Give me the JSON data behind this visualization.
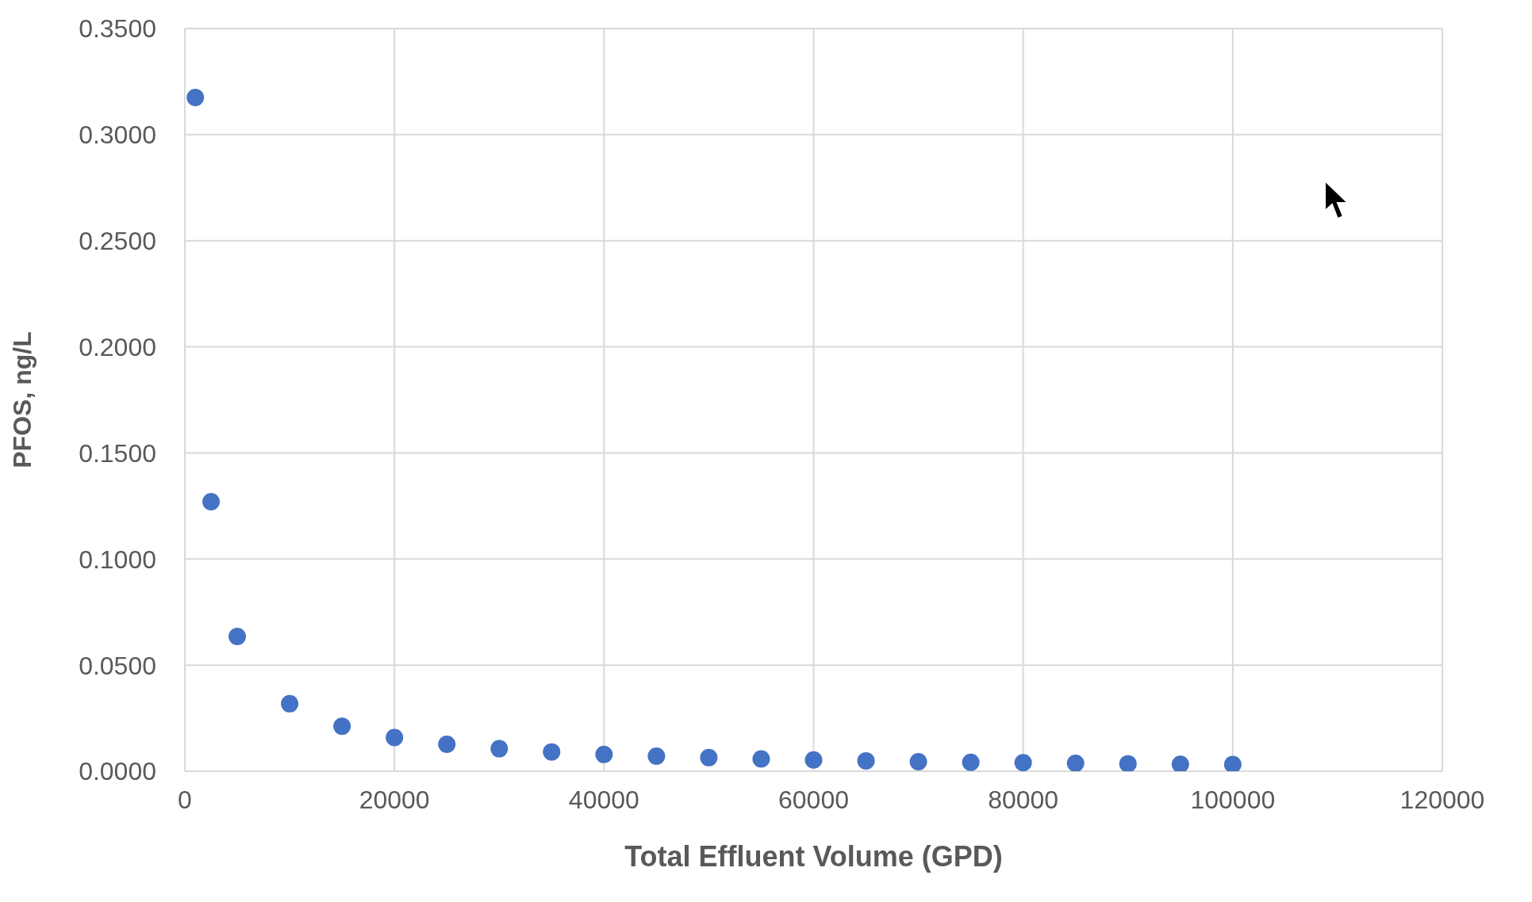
{
  "chart_data": {
    "type": "scatter",
    "xlabel": "Total Effluent Volume (GPD)",
    "ylabel": "PFOS, ng/L",
    "x": [
      1000,
      2500,
      5000,
      10000,
      15000,
      20000,
      25000,
      30000,
      35000,
      40000,
      45000,
      50000,
      55000,
      60000,
      65000,
      70000,
      75000,
      80000,
      85000,
      90000,
      95000,
      100000
    ],
    "series": [
      {
        "color": "#4472c4",
        "values": [
          0.3175,
          0.127,
          0.0635,
          0.0318,
          0.0212,
          0.0159,
          0.0127,
          0.0106,
          0.0091,
          0.0079,
          0.0071,
          0.0064,
          0.0058,
          0.0053,
          0.0049,
          0.0045,
          0.0042,
          0.004,
          0.0037,
          0.0035,
          0.0033,
          0.0032
        ]
      }
    ],
    "xlim": [
      0,
      120000
    ],
    "xticks": [
      0,
      20000,
      40000,
      60000,
      80000,
      100000,
      120000
    ],
    "ylim": [
      0,
      0.35
    ],
    "yticks": [
      {
        "value": 0,
        "label": "0.0000"
      },
      {
        "value": 0.05,
        "label": "0.0500"
      },
      {
        "value": 0.1,
        "label": "0.1000"
      },
      {
        "value": 0.15,
        "label": "0.1500"
      },
      {
        "value": 0.2,
        "label": "0.2000"
      },
      {
        "value": 0.25,
        "label": "0.2500"
      },
      {
        "value": 0.3,
        "label": "0.3000"
      },
      {
        "value": 0.35,
        "label": "0.3500"
      }
    ],
    "grid": true,
    "marker": "circle",
    "legend": false
  }
}
